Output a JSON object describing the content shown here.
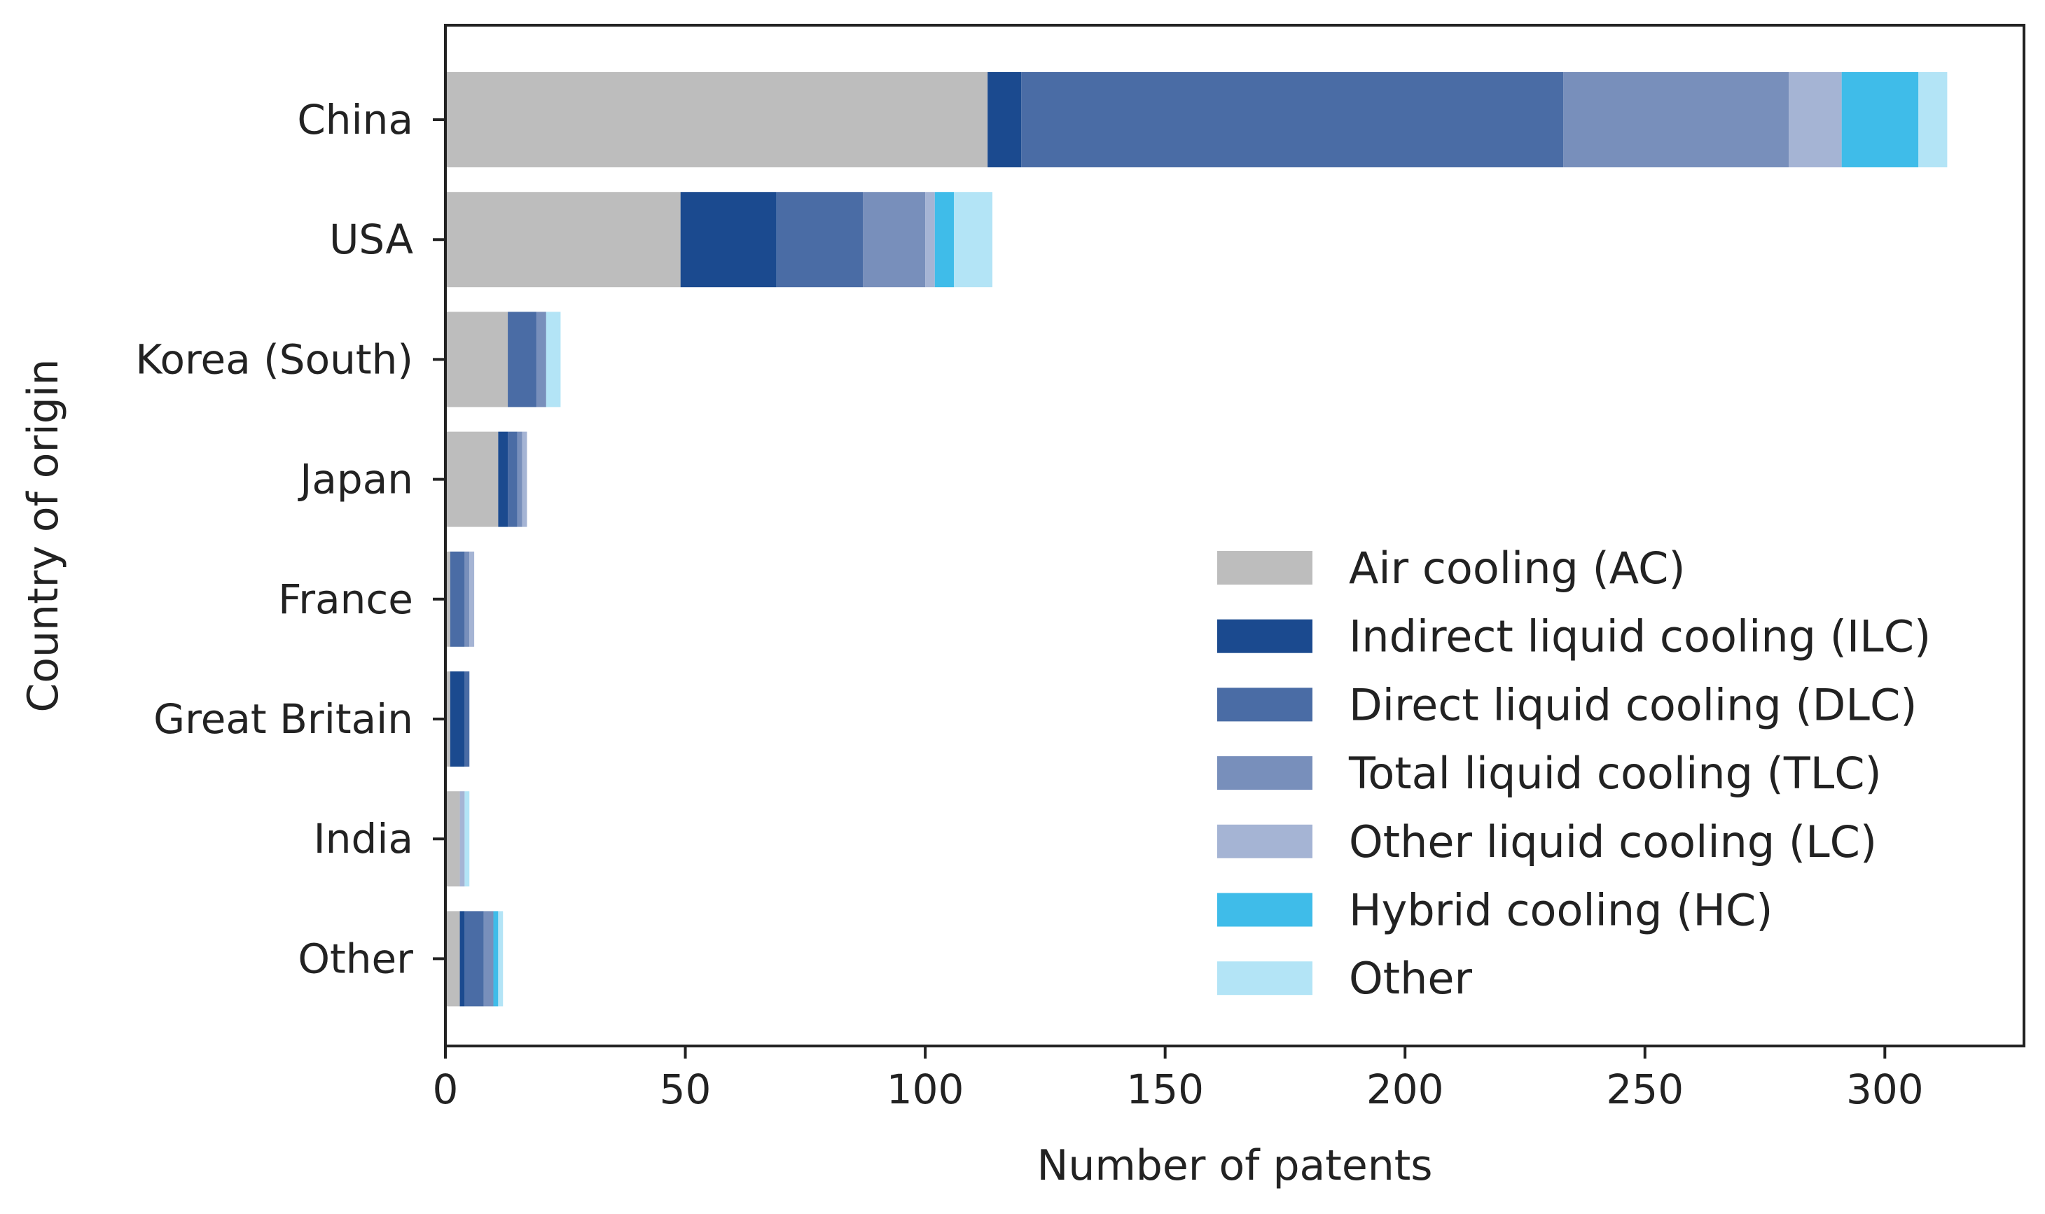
{
  "chart_data": {
    "type": "bar",
    "orientation": "horizontal",
    "stacked": true,
    "title": "",
    "xlabel": "Number of patents",
    "ylabel": "Country of origin",
    "xlim": [
      0,
      329
    ],
    "xticks": [
      0,
      50,
      100,
      150,
      200,
      250,
      300
    ],
    "grid": false,
    "legend_position": "lower-right",
    "categories": [
      "China",
      "USA",
      "Korea (South)",
      "Japan",
      "France",
      "Great Britain",
      "India",
      "Other"
    ],
    "series": [
      {
        "name": "Air cooling (AC)",
        "color": "#bdbdbd",
        "values": [
          113,
          49,
          13,
          11,
          1,
          1,
          3,
          3
        ]
      },
      {
        "name": "Indirect liquid cooling (ILC)",
        "color": "#1b4a8f",
        "values": [
          7,
          20,
          0,
          2,
          0,
          3,
          0,
          1
        ]
      },
      {
        "name": "Direct liquid cooling (DLC)",
        "color": "#4a6ca5",
        "values": [
          113,
          18,
          6,
          2,
          3,
          1,
          0,
          4
        ]
      },
      {
        "name": "Total liquid cooling (TLC)",
        "color": "#788fbb",
        "values": [
          47,
          13,
          2,
          1,
          1,
          0,
          0,
          2
        ]
      },
      {
        "name": "Other liquid cooling (LC)",
        "color": "#a5b4d4",
        "values": [
          11,
          2,
          0,
          1,
          1,
          0,
          1,
          0
        ]
      },
      {
        "name": "Hybrid cooling (HC)",
        "color": "#3fbce9",
        "values": [
          16,
          4,
          0,
          0,
          0,
          0,
          0,
          1
        ]
      },
      {
        "name": "Other",
        "color": "#b3e4f6",
        "values": [
          6,
          8,
          3,
          0,
          0,
          0,
          1,
          1
        ]
      }
    ]
  }
}
